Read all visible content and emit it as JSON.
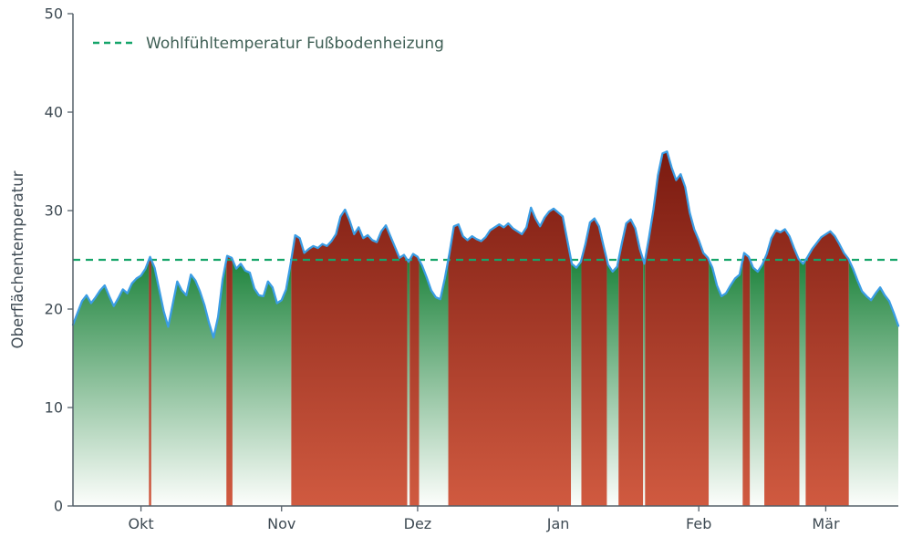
{
  "colors": {
    "line": "#3b9de4",
    "threshold": "#16a56a",
    "axis": "#55606a",
    "tick_label": "#3e4a53",
    "legend_text": "#3f5f55",
    "fill_green_top": "#157f35",
    "fill_green_bottom": "#fdfefc",
    "fill_red_top": "#7a1a10",
    "fill_red_bottom": "#d05a40"
  },
  "chart_data": {
    "type": "area",
    "title": "",
    "xlabel": "",
    "ylabel": "Oberflächentemperatur",
    "ylim": [
      0,
      50
    ],
    "yticks": [
      0,
      10,
      20,
      30,
      40,
      50
    ],
    "xtick_labels": [
      "Okt",
      "Nov",
      "Dez",
      "Jan",
      "Feb",
      "Mär"
    ],
    "xtick_days": [
      15,
      46,
      76,
      107,
      138,
      166
    ],
    "x_range_days": [
      0,
      182
    ],
    "grid": false,
    "threshold": {
      "value": 25,
      "label": "Wohlfühltemperatur Fußbodenheizung",
      "style": "dashed"
    },
    "legend": {
      "position": "upper-left",
      "frame": false
    },
    "fill_rule": "area under curve filled green-gradient where value < threshold, red-gradient where value >= threshold, both extending down to 0",
    "series": [
      {
        "name": "Oberflächentemperatur",
        "values": [
          18.4,
          19.6,
          20.8,
          21.4,
          20.6,
          21.2,
          21.9,
          22.4,
          21.3,
          20.3,
          21.1,
          22.0,
          21.6,
          22.6,
          23.1,
          23.4,
          24.1,
          25.3,
          24.2,
          22.0,
          19.8,
          18.2,
          20.5,
          22.8,
          21.9,
          21.4,
          23.5,
          22.9,
          21.8,
          20.4,
          18.6,
          17.1,
          19.2,
          23.0,
          25.4,
          25.2,
          24.1,
          24.6,
          23.9,
          23.7,
          22.1,
          21.4,
          21.3,
          22.8,
          22.2,
          20.6,
          20.9,
          22.0,
          24.6,
          27.5,
          27.2,
          25.7,
          26.1,
          26.4,
          26.2,
          26.6,
          26.4,
          26.9,
          27.6,
          29.4,
          30.1,
          29.0,
          27.6,
          28.3,
          27.2,
          27.5,
          27.0,
          26.8,
          27.9,
          28.5,
          27.4,
          26.3,
          25.2,
          25.5,
          24.8,
          25.6,
          25.3,
          24.4,
          23.2,
          21.9,
          21.2,
          21.0,
          23.1,
          25.6,
          28.4,
          28.6,
          27.4,
          27.0,
          27.4,
          27.1,
          26.9,
          27.3,
          28.0,
          28.3,
          28.6,
          28.3,
          28.7,
          28.2,
          27.9,
          27.6,
          28.3,
          30.3,
          29.2,
          28.4,
          29.3,
          29.9,
          30.2,
          29.8,
          29.4,
          27.0,
          24.6,
          24.2,
          24.8,
          26.6,
          28.8,
          29.2,
          28.4,
          26.4,
          24.5,
          23.8,
          24.3,
          26.6,
          28.7,
          29.1,
          28.2,
          26.1,
          24.6,
          27.2,
          30.1,
          33.6,
          35.8,
          36.0,
          34.4,
          33.1,
          33.7,
          32.4,
          29.8,
          28.1,
          27.0,
          25.7,
          25.2,
          24.2,
          22.4,
          21.3,
          21.6,
          22.4,
          23.1,
          23.5,
          25.7,
          25.3,
          24.2,
          23.8,
          24.5,
          25.6,
          27.2,
          28.0,
          27.8,
          28.1,
          27.4,
          26.2,
          25.1,
          24.6,
          25.3,
          26.1,
          26.7,
          27.3,
          27.6,
          27.9,
          27.4,
          26.6,
          25.7,
          25.1,
          24.1,
          22.9,
          21.8,
          21.3,
          20.9,
          21.6,
          22.2,
          21.4,
          20.8,
          19.6,
          18.3
        ]
      }
    ]
  }
}
